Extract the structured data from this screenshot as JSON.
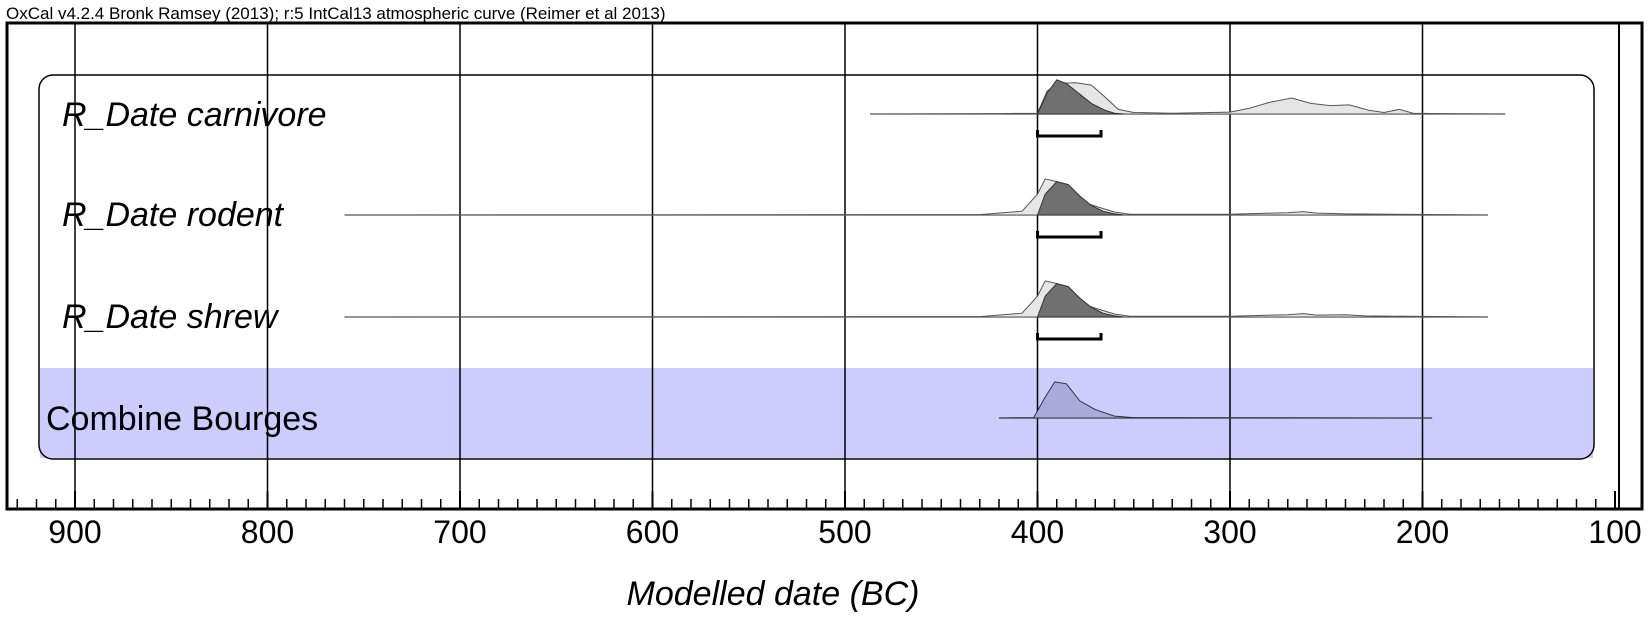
{
  "header_text": "OxCal v4.2.4 Bronk Ramsey (2013); r:5 IntCal13 atmospheric curve (Reimer et al 2013)",
  "chart_data": {
    "type": "area",
    "title": "",
    "xlabel": "Modelled date (BC)",
    "ylabel": "",
    "xlim": [
      934,
      100
    ],
    "x_reversed": true,
    "grid": true,
    "xticks": [
      900,
      800,
      700,
      600,
      500,
      400,
      300,
      200,
      100
    ],
    "xtick_labels": [
      "900",
      "800",
      "700",
      "600",
      "500",
      "400",
      "300",
      "200",
      "100"
    ],
    "grid_lines": [
      900,
      800,
      700,
      600,
      500,
      400,
      300,
      200
    ],
    "rows": [
      {
        "label": "R_Date carnivore",
        "italic": true,
        "highlighted": false,
        "range_line": [
          487,
          157
        ],
        "bracket": [
          400,
          367
        ],
        "prior": [
          [
            487,
            0
          ],
          [
            420,
            0.01
          ],
          [
            400,
            0.02
          ],
          [
            395,
            0.6
          ],
          [
            390,
            0.8
          ],
          [
            380,
            0.82
          ],
          [
            372,
            0.76
          ],
          [
            365,
            0.45
          ],
          [
            358,
            0.12
          ],
          [
            350,
            0.04
          ],
          [
            330,
            0.02
          ],
          [
            300,
            0.05
          ],
          [
            290,
            0.15
          ],
          [
            280,
            0.3
          ],
          [
            268,
            0.42
          ],
          [
            258,
            0.28
          ],
          [
            248,
            0.22
          ],
          [
            238,
            0.24
          ],
          [
            228,
            0.1
          ],
          [
            220,
            0.04
          ],
          [
            212,
            0.12
          ],
          [
            205,
            0.02
          ],
          [
            190,
            0.01
          ],
          [
            157,
            0
          ]
        ],
        "posterior": [
          [
            400,
            0
          ],
          [
            395,
            0.55
          ],
          [
            390,
            0.9
          ],
          [
            385,
            0.8
          ],
          [
            378,
            0.52
          ],
          [
            372,
            0.28
          ],
          [
            365,
            0.1
          ],
          [
            360,
            0.02
          ],
          [
            355,
            0
          ]
        ]
      },
      {
        "label": "R_Date rodent",
        "italic": true,
        "highlighted": false,
        "range_line": [
          760,
          166
        ],
        "bracket": [
          400,
          367
        ],
        "prior": [
          [
            760,
            0
          ],
          [
            430,
            0.01
          ],
          [
            408,
            0.1
          ],
          [
            400,
            0.55
          ],
          [
            396,
            0.95
          ],
          [
            390,
            0.88
          ],
          [
            382,
            0.62
          ],
          [
            375,
            0.32
          ],
          [
            368,
            0.2
          ],
          [
            360,
            0.08
          ],
          [
            352,
            0.02
          ],
          [
            300,
            0.02
          ],
          [
            270,
            0.06
          ],
          [
            262,
            0.09
          ],
          [
            255,
            0.05
          ],
          [
            240,
            0.03
          ],
          [
            166,
            0
          ]
        ],
        "posterior": [
          [
            400,
            0
          ],
          [
            396,
            0.55
          ],
          [
            390,
            0.88
          ],
          [
            384,
            0.8
          ],
          [
            378,
            0.5
          ],
          [
            372,
            0.25
          ],
          [
            366,
            0.1
          ],
          [
            360,
            0.03
          ],
          [
            355,
            0
          ]
        ]
      },
      {
        "label": "R_Date shrew",
        "italic": true,
        "highlighted": false,
        "range_line": [
          760,
          166
        ],
        "bracket": [
          400,
          367
        ],
        "prior": [
          [
            760,
            0
          ],
          [
            430,
            0.01
          ],
          [
            408,
            0.1
          ],
          [
            400,
            0.55
          ],
          [
            396,
            0.95
          ],
          [
            390,
            0.88
          ],
          [
            382,
            0.62
          ],
          [
            375,
            0.32
          ],
          [
            368,
            0.2
          ],
          [
            360,
            0.08
          ],
          [
            352,
            0.02
          ],
          [
            300,
            0.02
          ],
          [
            270,
            0.06
          ],
          [
            262,
            0.09
          ],
          [
            255,
            0.05
          ],
          [
            240,
            0.06
          ],
          [
            230,
            0.03
          ],
          [
            166,
            0
          ]
        ],
        "posterior": [
          [
            400,
            0
          ],
          [
            396,
            0.55
          ],
          [
            390,
            0.88
          ],
          [
            384,
            0.8
          ],
          [
            378,
            0.5
          ],
          [
            372,
            0.25
          ],
          [
            366,
            0.1
          ],
          [
            360,
            0.03
          ],
          [
            355,
            0
          ]
        ]
      },
      {
        "label": "Combine Bourges",
        "italic": false,
        "highlighted": true,
        "range_line": [
          420,
          195
        ],
        "bracket": null,
        "prior": [],
        "posterior": [
          [
            420,
            0
          ],
          [
            402,
            0.01
          ],
          [
            396,
            0.55
          ],
          [
            391,
            0.95
          ],
          [
            385,
            0.9
          ],
          [
            378,
            0.45
          ],
          [
            370,
            0.22
          ],
          [
            360,
            0.05
          ],
          [
            350,
            0.01
          ],
          [
            195,
            0
          ]
        ]
      }
    ]
  },
  "colors": {
    "highlight_band": "#ccccff",
    "prior_fill": "#e6e6e6",
    "posterior_fill": "#707070",
    "combine_fill": "#aaaadd",
    "frame": "#000000"
  }
}
